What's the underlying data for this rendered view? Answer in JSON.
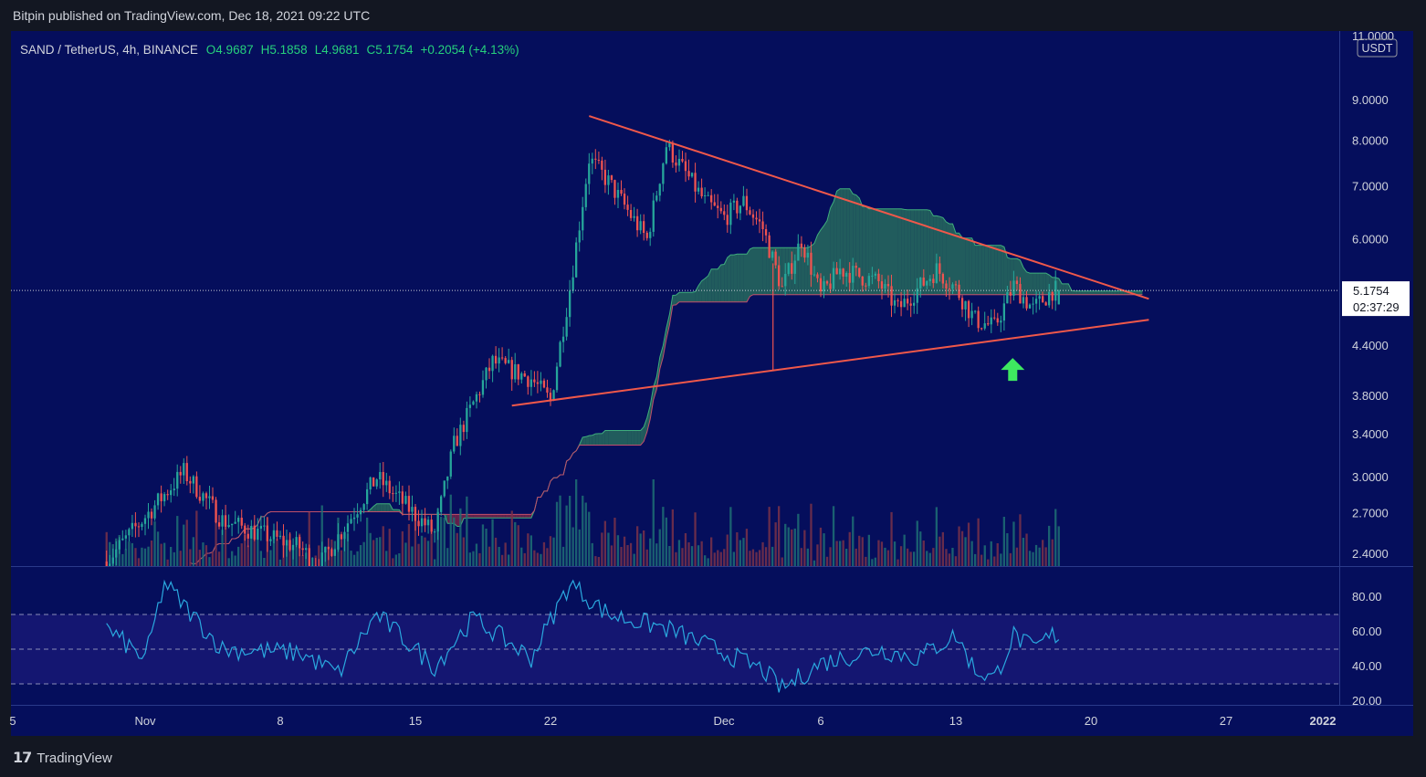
{
  "publisher_line": "Bitpin published on TradingView.com, Dec 18, 2021 09:22 UTC",
  "footer_brand": "TradingView",
  "colors": {
    "pane_bg": "#050e5c",
    "outer_bg": "#131722",
    "up": "#26a69a",
    "down": "#ef5350",
    "trendline": "#f0584a",
    "rsi_line": "#2aa9df",
    "cloud_bull": "#2e7d5e",
    "cloud_bear": "#8e2a46",
    "arrow": "#3ee860"
  },
  "legend": {
    "symbol": "SAND / TetherUS, 4h, BINANCE",
    "open": "O4.9687",
    "high": "H5.1858",
    "low": "L4.9681",
    "close": "C5.1754",
    "change": "+0.2054 (+4.13%)"
  },
  "chart_data": {
    "type": "candlestick",
    "symbol": "SAND / TetherUS",
    "timeframe": "4h",
    "exchange": "BINANCE",
    "scale": "log",
    "last_price": "5.1754",
    "countdown": "02:37:29",
    "currency_badge": "USDT",
    "price_axis_labels": [
      "11.0000",
      "9.0000",
      "8.0000",
      "7.0000",
      "6.0000",
      "4.4000",
      "3.8000",
      "3.4000",
      "3.0000",
      "2.7000",
      "2.4000"
    ],
    "rsi_axis_labels": [
      "80.00",
      "60.00",
      "40.00",
      "20.00"
    ],
    "rsi_bands": [
      70,
      50,
      30
    ],
    "time_axis_labels": [
      "5",
      "Nov",
      "8",
      "15",
      "22",
      "Dec",
      "6",
      "13",
      "20",
      "27",
      "2022"
    ],
    "price_path": [
      [
        "2021-10-30",
        2.35
      ],
      [
        "2021-11-03",
        3.05
      ],
      [
        "2021-11-05",
        2.65
      ],
      [
        "2021-11-09",
        2.45
      ],
      [
        "2021-11-10",
        2.32
      ],
      [
        "2021-11-13",
        3.0
      ],
      [
        "2021-11-16",
        2.55
      ],
      [
        "2021-11-17",
        3.3
      ],
      [
        "2021-11-19",
        4.2
      ],
      [
        "2021-11-21",
        4.0
      ],
      [
        "2021-11-22",
        3.75
      ],
      [
        "2021-11-23",
        5.2
      ],
      [
        "2021-11-24",
        7.6
      ],
      [
        "2021-11-25",
        7.1
      ],
      [
        "2021-11-27",
        6.0
      ],
      [
        "2021-11-28",
        7.9
      ],
      [
        "2021-11-30",
        6.7
      ],
      [
        "2021-12-01",
        6.4
      ],
      [
        "2021-12-02",
        6.7
      ],
      [
        "2021-12-03",
        6.2
      ],
      [
        "2021-12-04",
        5.2
      ],
      [
        "2021-12-05",
        6.0
      ],
      [
        "2021-12-06",
        5.1
      ],
      [
        "2021-12-07",
        5.5
      ],
      [
        "2021-12-09",
        5.3
      ],
      [
        "2021-12-10",
        4.9
      ],
      [
        "2021-12-12",
        5.5
      ],
      [
        "2021-12-13",
        5.2
      ],
      [
        "2021-12-14",
        4.75
      ],
      [
        "2021-12-15",
        4.65
      ],
      [
        "2021-12-16",
        5.25
      ],
      [
        "2021-12-17",
        4.9
      ],
      [
        "2021-12-18",
        5.1754
      ]
    ],
    "trendlines": [
      {
        "name": "upper",
        "from": [
          "2021-11-24",
          8.6
        ],
        "to": [
          "2021-12-23",
          5.05
        ]
      },
      {
        "name": "lower",
        "from": [
          "2021-11-20",
          3.7
        ],
        "to": [
          "2021-12-23",
          4.75
        ]
      }
    ],
    "rsi_path": [
      [
        "2021-10-30",
        62
      ],
      [
        "2021-11-01",
        44
      ],
      [
        "2021-11-02",
        88
      ],
      [
        "2021-11-05",
        50
      ],
      [
        "2021-11-09",
        48
      ],
      [
        "2021-11-11",
        36
      ],
      [
        "2021-11-13",
        70
      ],
      [
        "2021-11-16",
        40
      ],
      [
        "2021-11-18",
        68
      ],
      [
        "2021-11-21",
        45
      ],
      [
        "2021-11-23",
        88
      ],
      [
        "2021-11-25",
        70
      ],
      [
        "2021-11-28",
        62
      ],
      [
        "2021-12-01",
        48
      ],
      [
        "2021-12-03",
        38
      ],
      [
        "2021-12-04",
        27
      ],
      [
        "2021-12-06",
        42
      ],
      [
        "2021-12-09",
        50
      ],
      [
        "2021-12-11",
        45
      ],
      [
        "2021-12-13",
        58
      ],
      [
        "2021-12-14",
        38
      ],
      [
        "2021-12-15",
        33
      ],
      [
        "2021-12-16",
        58
      ],
      [
        "2021-12-17",
        50
      ],
      [
        "2021-12-18",
        58
      ]
    ]
  }
}
